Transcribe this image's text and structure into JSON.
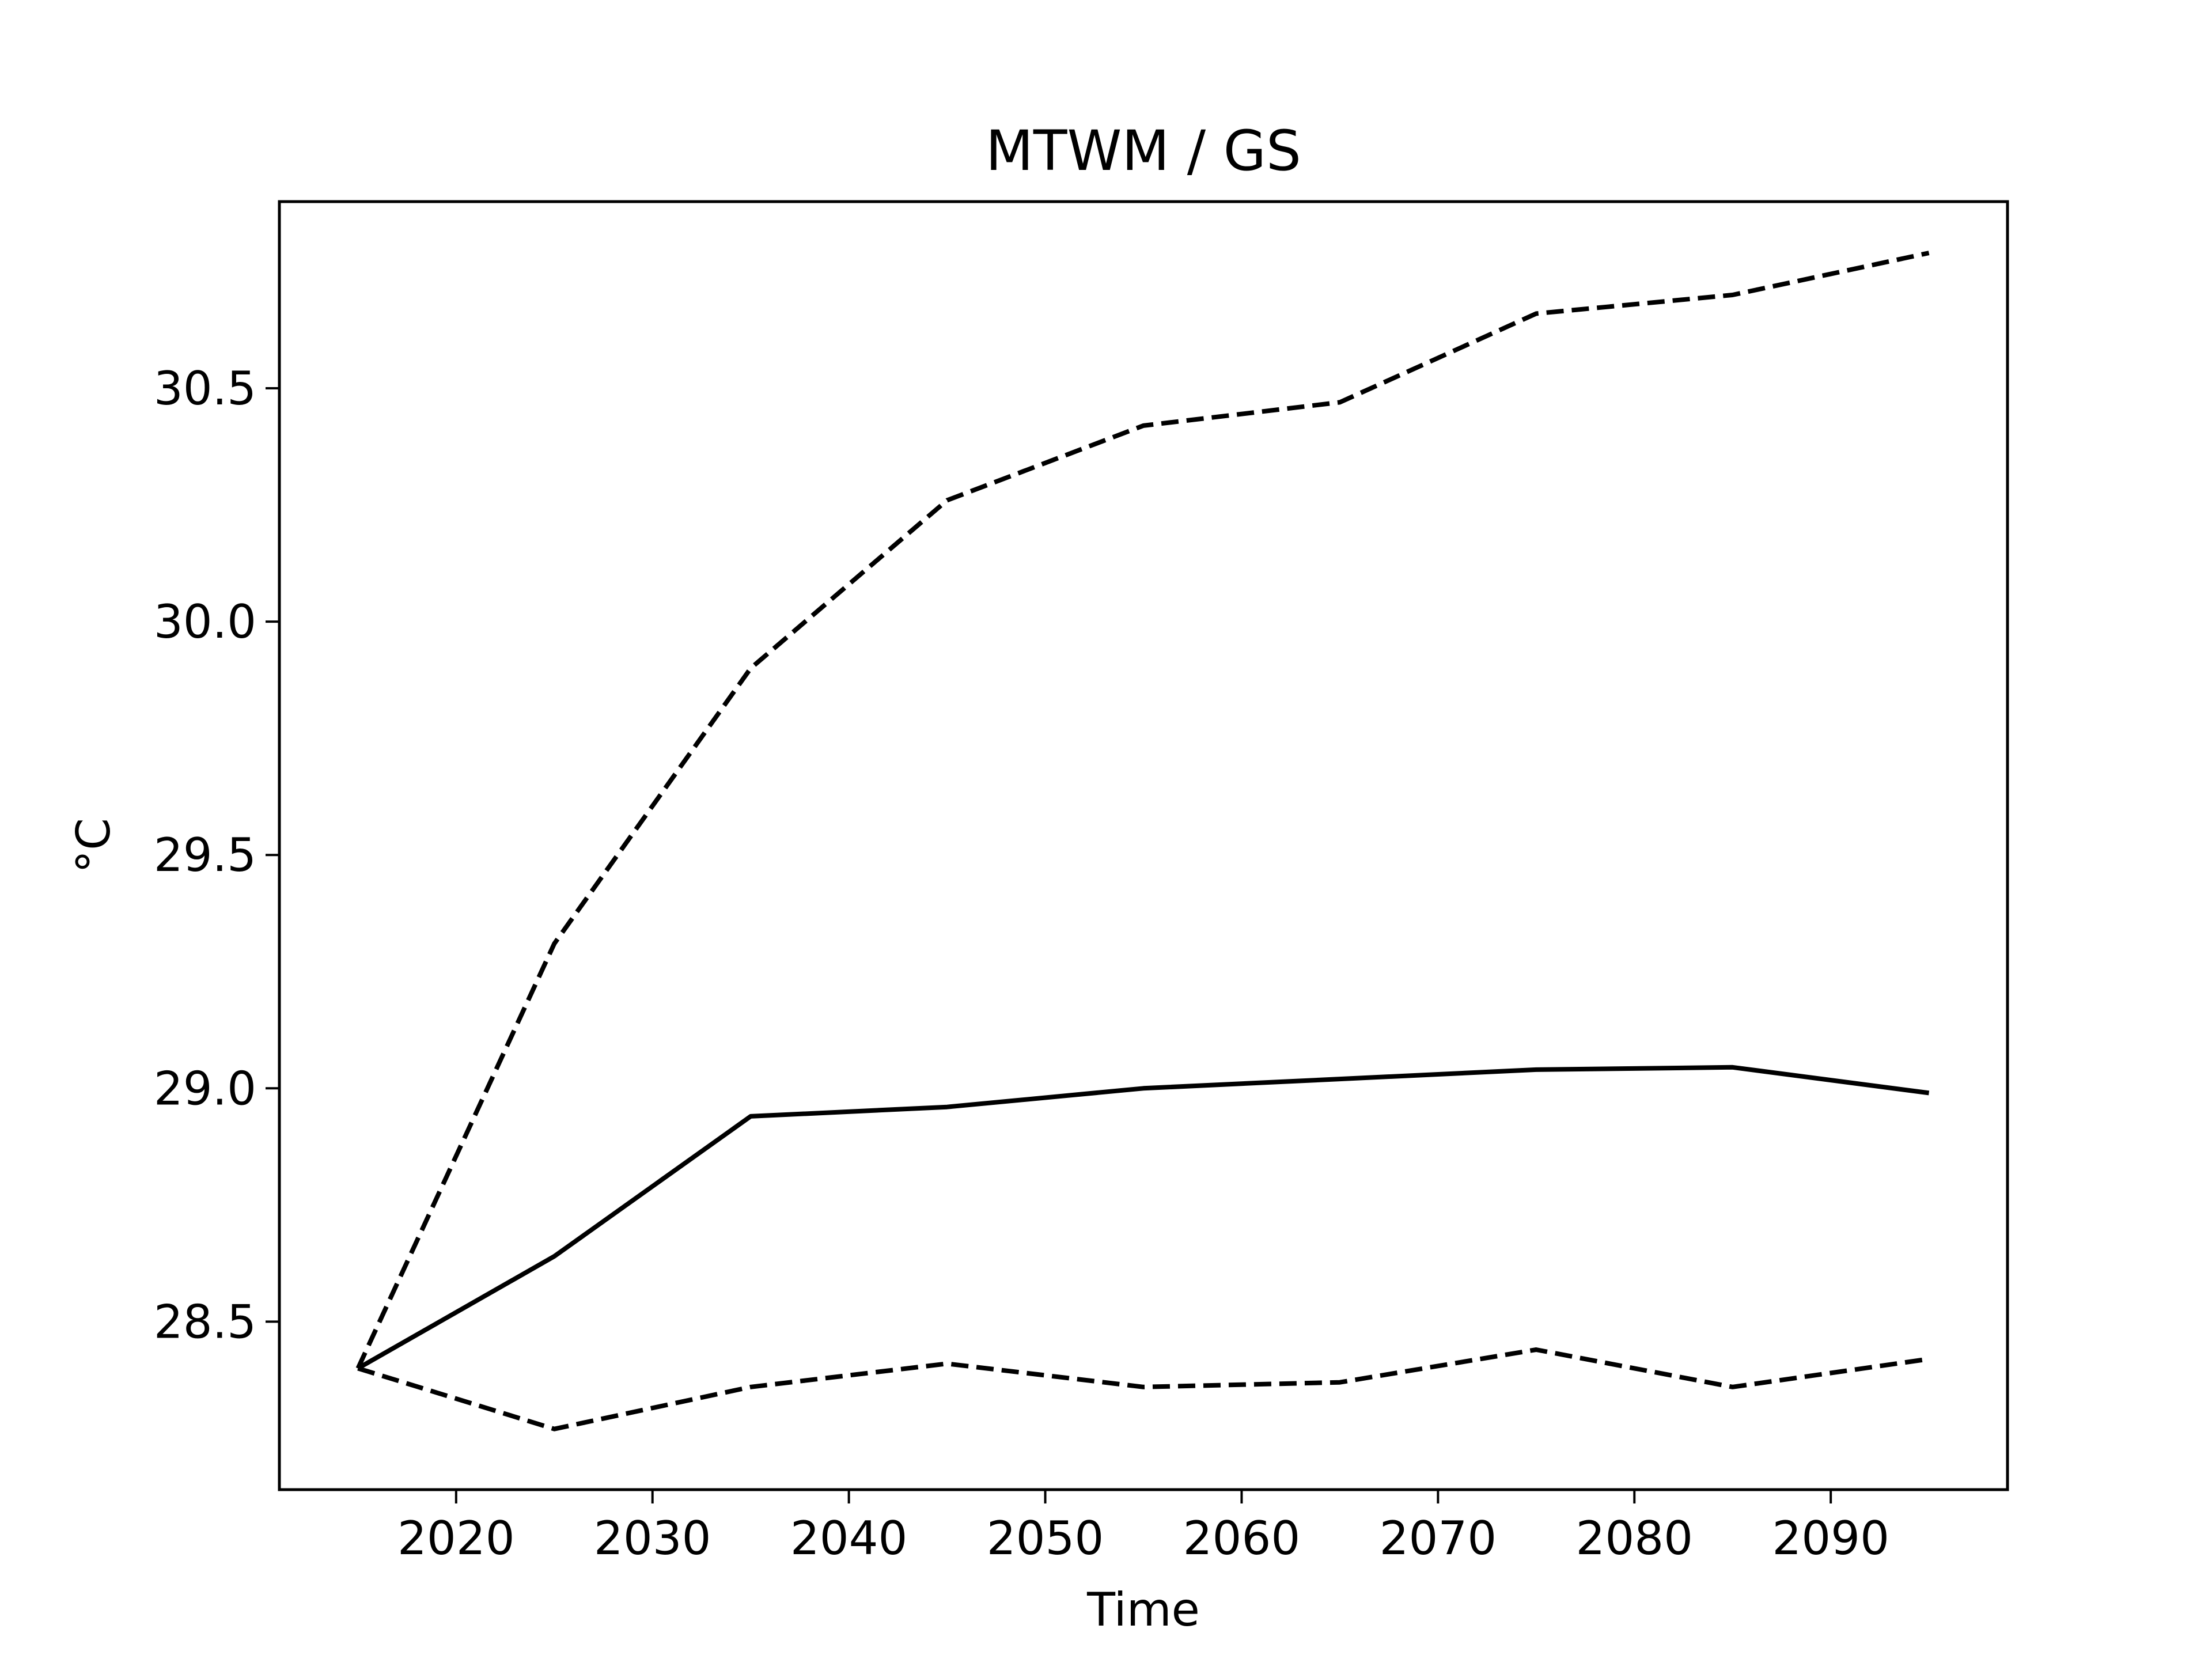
{
  "chart_data": {
    "type": "line",
    "title": "MTWM / GS",
    "xlabel": "Time",
    "ylabel": "°C",
    "xlim": [
      2011,
      2099
    ],
    "ylim": [
      28.14,
      30.9
    ],
    "xticks": [
      2020,
      2030,
      2040,
      2050,
      2060,
      2070,
      2080,
      2090
    ],
    "yticks": [
      28.5,
      29.0,
      29.5,
      30.0,
      30.5
    ],
    "ytick_labels": [
      "28.5",
      "29.0",
      "29.5",
      "30.0",
      "30.5"
    ],
    "grid": false,
    "x": [
      2015,
      2025,
      2035,
      2045,
      2055,
      2065,
      2075,
      2085,
      2095
    ],
    "series": [
      {
        "style": "dashed",
        "color": "#000000",
        "values": [
          28.4,
          29.31,
          29.9,
          30.26,
          30.42,
          30.47,
          30.66,
          30.7,
          30.79
        ]
      },
      {
        "style": "solid",
        "color": "#000000",
        "values": [
          28.4,
          28.64,
          28.94,
          28.96,
          29.0,
          29.02,
          29.04,
          29.045,
          28.99
        ]
      },
      {
        "style": "dashed",
        "color": "#000000",
        "values": [
          28.4,
          28.27,
          28.36,
          28.41,
          28.36,
          28.37,
          28.44,
          28.36,
          28.42
        ]
      }
    ]
  }
}
